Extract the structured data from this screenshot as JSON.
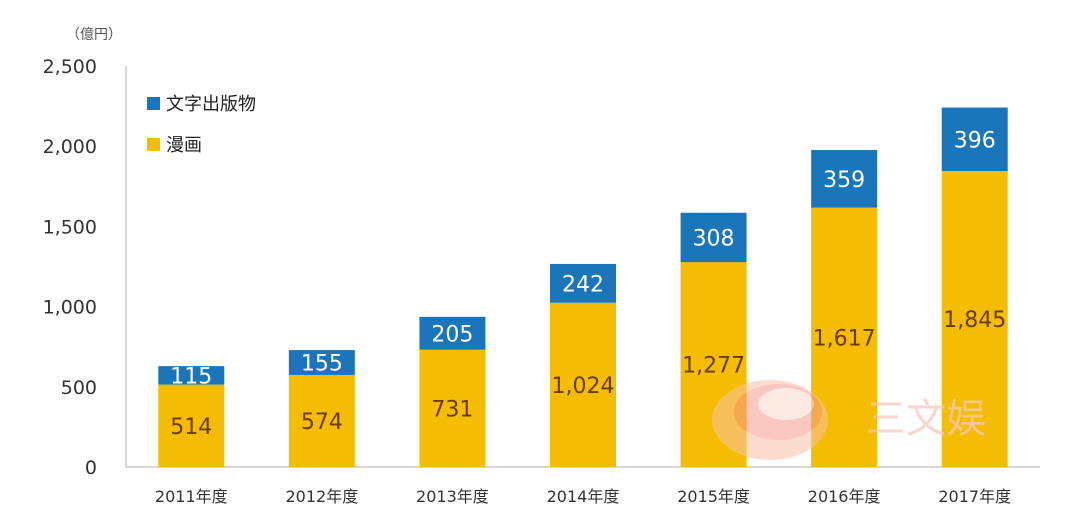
{
  "chart_data": {
    "type": "bar",
    "stacked": true,
    "unit_label": "（億円）",
    "categories": [
      "2011年度",
      "2012年度",
      "2013年度",
      "2014年度",
      "2015年度",
      "2016年度",
      "2017年度"
    ],
    "series": [
      {
        "name": "漫画",
        "color": "#f5bd02",
        "values": [
          514,
          574,
          731,
          1024,
          1277,
          1617,
          1845
        ],
        "labels": [
          "514",
          "574",
          "731",
          "1,024",
          "1,277",
          "1,617",
          "1,845"
        ]
      },
      {
        "name": "文字出版物",
        "color": "#1b75bb",
        "values": [
          115,
          155,
          205,
          242,
          308,
          359,
          396
        ],
        "labels": [
          "115",
          "155",
          "205",
          "242",
          "308",
          "359",
          "396"
        ]
      }
    ],
    "ylim": [
      0,
      2500
    ],
    "yticks": [
      {
        "value": 0,
        "label": "0"
      },
      {
        "value": 500,
        "label": "500"
      },
      {
        "value": 1000,
        "label": "1,000"
      },
      {
        "value": 1500,
        "label": "1,500"
      },
      {
        "value": 2000,
        "label": "2,000"
      },
      {
        "value": 2500,
        "label": "2,500"
      }
    ],
    "legend_position": "top-left",
    "grid": false
  },
  "watermark": {
    "text": "三文娱"
  }
}
